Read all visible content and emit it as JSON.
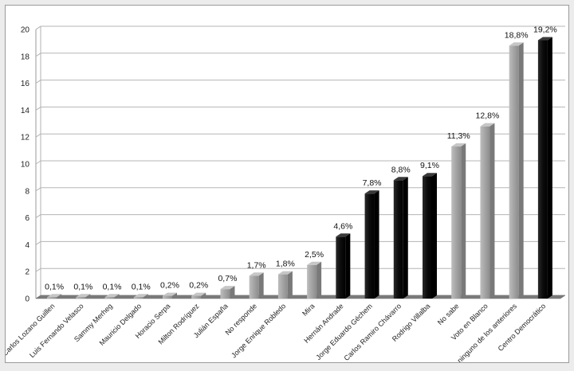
{
  "chart_data": {
    "type": "bar",
    "title": "",
    "xlabel": "",
    "ylabel": "",
    "ylim": [
      0,
      20
    ],
    "yticks": [
      0,
      2,
      4,
      6,
      8,
      10,
      12,
      14,
      16,
      18,
      20
    ],
    "grid": true,
    "categories": [
      "Carlos Lozano Guillen",
      "Luis Fernando Velasco",
      "Sammy Merheg",
      "Mauricio Delgado",
      "Horacio Serpa",
      "Milton Rodríguez",
      "Julián España",
      "No responde",
      "Jorge Enrique Robledo",
      "Mira",
      "Hernán Andrade",
      "Jorge Eduardo Géchem",
      "Carlos Ramiro Chávarro",
      "Rodrigo Villalba",
      "No sabe",
      "Voto en Blanco",
      "Por ninguno de los anteriores",
      "Centro Democrático"
    ],
    "values": [
      0.1,
      0.1,
      0.1,
      0.1,
      0.2,
      0.2,
      0.7,
      1.7,
      1.8,
      2.5,
      4.6,
      7.8,
      8.8,
      9.1,
      11.3,
      12.8,
      18.8,
      19.2
    ],
    "value_labels": [
      "0,1%",
      "0,1%",
      "0,1%",
      "0,1%",
      "0,2%",
      "0,2%",
      "0,7%",
      "1,7%",
      "1,8%",
      "2,5%",
      "4,6%",
      "7,8%",
      "8,8%",
      "9,1%",
      "11,3%",
      "12,8%",
      "18,8%",
      "19,2%"
    ],
    "bar_colors": [
      "#a8a8a8",
      "#a8a8a8",
      "#a8a8a8",
      "#a8a8a8",
      "#a8a8a8",
      "#a8a8a8",
      "#a8a8a8",
      "#a8a8a8",
      "#a8a8a8",
      "#a8a8a8",
      "#111111",
      "#111111",
      "#111111",
      "#111111",
      "#a8a8a8",
      "#a8a8a8",
      "#a8a8a8",
      "#111111"
    ]
  }
}
